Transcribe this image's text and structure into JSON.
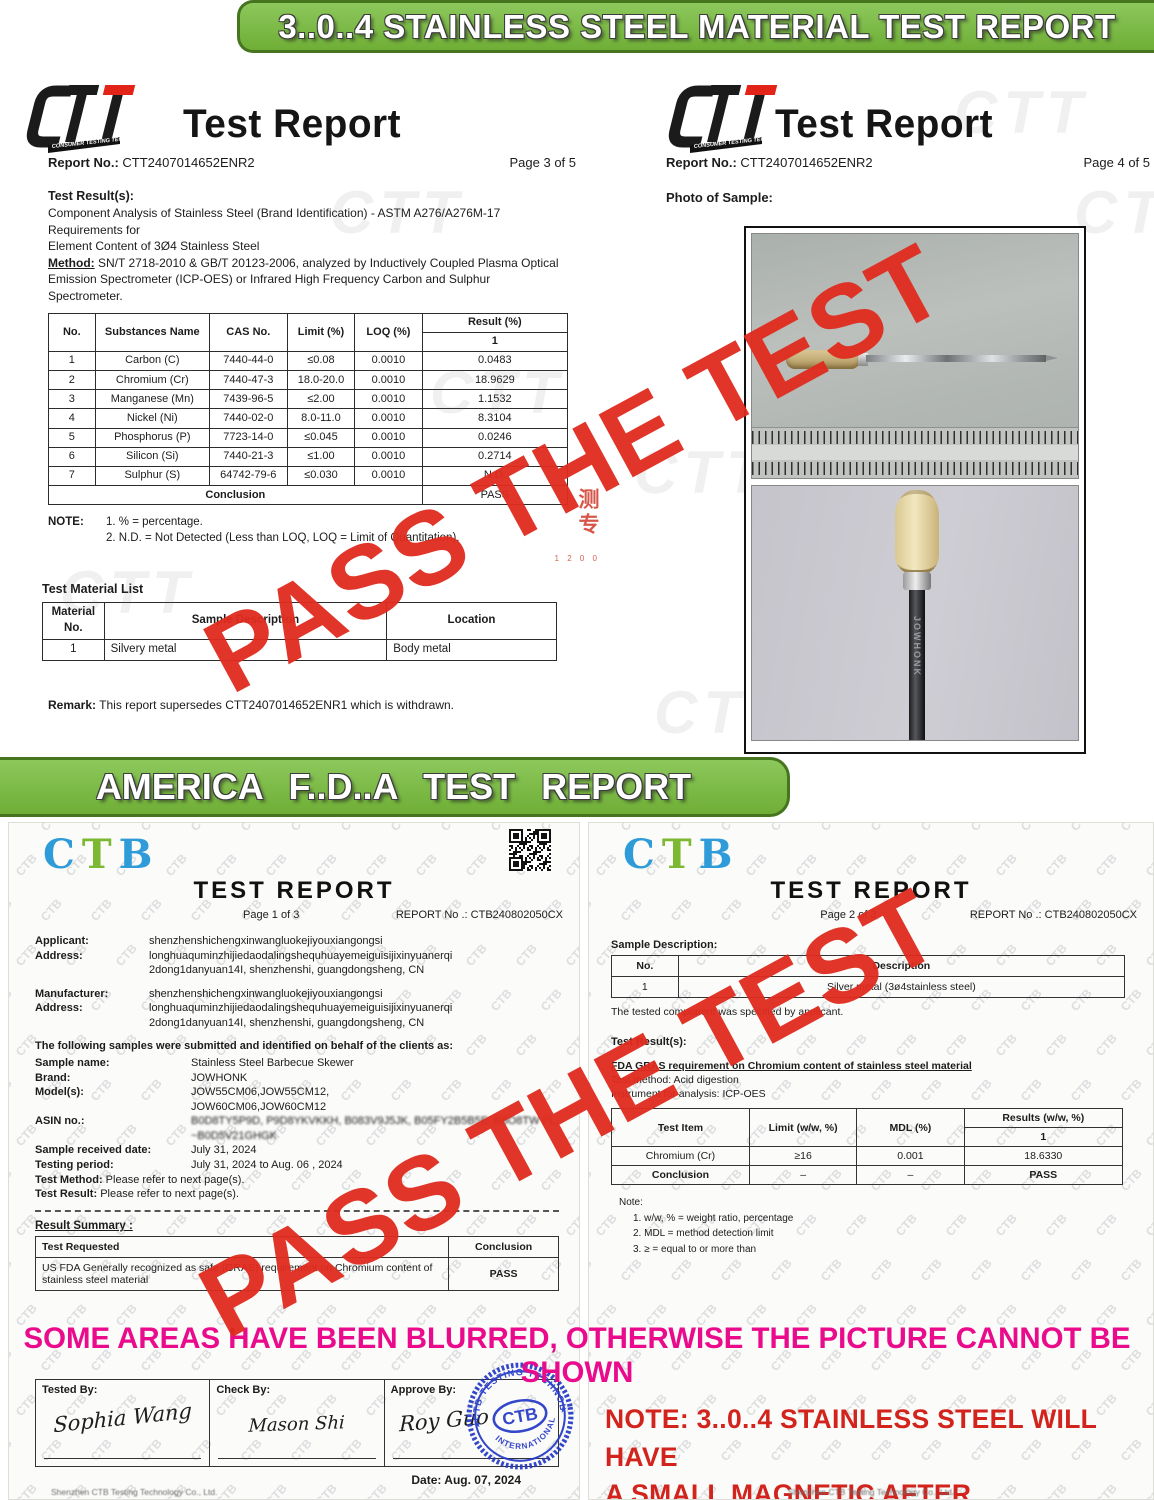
{
  "banners": {
    "top": "3..0..4 STAINLESS STEEL MATERIAL TEST REPORT",
    "middle": "AMERICA F..D..A TEST REPORT",
    "watermark_text": "PASS THE TEST",
    "watermark_color": "#e02b1e",
    "accent_green": "#6fae36",
    "blur_notice": "SOME AREAS HAVE BEEN BLURRED, OTHERWISE THE PICTURE CANNOT BE SHOWN",
    "blur_notice_color": "#ea0a8c"
  },
  "watermarks": {
    "ctt": "CTT",
    "ctb": "CTB"
  },
  "ctt_page3": {
    "logo_sub": "CONSUMER TESTING TECH",
    "title": "Test Report",
    "report_no_label": "Report No.:",
    "report_no": "CTT2407014652ENR2",
    "page": "Page 3 of 5",
    "section_label": "Test Result(s):",
    "desc_line1": "Component Analysis of Stainless Steel (Brand Identification) - ASTM A276/A276M-17 Requirements for",
    "desc_line2": "Element Content of 3Ø4 Stainless Steel",
    "method_label": "Method:",
    "method_text": " SN/T 2718-2010 & GB/T 20123-2006, analyzed by Inductively Coupled Plasma Optical Emission Spectrometer (ICP-OES)  or Infrared High Frequency Carbon and Sulphur Spectrometer.",
    "table": {
      "h_no": "No.",
      "h_name": "Substances Name",
      "h_cas": "CAS No.",
      "h_limit": "Limit (%)",
      "h_loq": "LOQ (%)",
      "h_result": "Result (%)",
      "result_sub": "1",
      "rows": [
        [
          "1",
          "Carbon (C)",
          "7440-44-0",
          "≤0.08",
          "0.0010",
          "0.0483"
        ],
        [
          "2",
          "Chromium (Cr)",
          "7440-47-3",
          "18.0-20.0",
          "0.0010",
          "18.9629"
        ],
        [
          "3",
          "Manganese (Mn)",
          "7439-96-5",
          "≤2.00",
          "0.0010",
          "1.1532"
        ],
        [
          "4",
          "Nickel (Ni)",
          "7440-02-0",
          "8.0-11.0",
          "0.0010",
          "8.3104"
        ],
        [
          "5",
          "Phosphorus (P)",
          "7723-14-0",
          "≤0.045",
          "0.0010",
          "0.0246"
        ],
        [
          "6",
          "Silicon (Si)",
          "7440-21-3",
          "≤1.00",
          "0.0010",
          "0.2714"
        ],
        [
          "7",
          "Sulphur (S)",
          "64742-79-6",
          "≤0.030",
          "0.0010",
          "N.D."
        ]
      ],
      "conclusion_label": "Conclusion",
      "conclusion_value": "PASS"
    },
    "note_label": "NOTE:",
    "notes": [
      "1. % = percentage.",
      "2. N.D. = Not Detected (Less than LOQ, LOQ = Limit of Quantitation)."
    ],
    "material_label": "Test Material List",
    "material_headers": [
      "Material No.",
      "Sample Description",
      "Location"
    ],
    "material_row": [
      "1",
      "Silvery metal",
      "Body metal"
    ],
    "remark_label": "Remark:",
    "remark_text": " This report supersedes CTT2407014652ENR1 which is withdrawn.",
    "seal_text": "测专",
    "seal_sub": "1 2 0 0"
  },
  "ctt_page4": {
    "logo_sub": "CONSUMER TESTING TECH",
    "title": "Test Report",
    "report_no_label": "Report No.:",
    "report_no": "CTT2407014652ENR2",
    "page": "Page 4 of 5",
    "photo_label": "Photo of Sample:",
    "blade_text": "JOWHONK"
  },
  "ctb_page1": {
    "logo": [
      "C",
      "T",
      "B"
    ],
    "title": "TEST REPORT",
    "page": "Page 1 of 3",
    "report_label": "REPORT No .:",
    "report_no": "CTB240802050CX",
    "applicant_label": "Applicant:",
    "applicant": "shenzhenshichengxinwangluokejiyouxiangongsi",
    "address_label": "Address:",
    "address_l1": "longhuaquminzhijiedaodalingshequhuayemeiguisijixinyuanerqi",
    "address_l2": "2dong1danyuan14I, shenzhenshi, guangdongsheng, CN",
    "manufacturer_label": "Manufacturer:",
    "manufacturer": "shenzhenshichengxinwangluokejiyouxiangongsi",
    "samples_intro": "The following samples were submitted and identified on behalf of the clients as:",
    "sample_name_label": "Sample name:",
    "sample_name": "Stainless Steel Barbecue Skewer",
    "brand_label": "Brand:",
    "brand": "JOWHONK",
    "models_label": "Model(s):",
    "models_l1": "JOW55CM06,JOW55CM12,",
    "models_l2": "JOW60CM06,JOW60CM12",
    "asin_label": "ASIN no.:",
    "asin_l1": "B0D8TY5P9D, P9D8YKVKKH, B083V9J5JK, B05FY2B5B5E, B8O8TW FL,",
    "asin_l2": "~B0D5V21GHGK",
    "received_label": "Sample received date:",
    "received": "July 31, 2024",
    "period_label": "Testing period:",
    "period": "July 31, 2024 to Aug. 06 , 2024",
    "method_label": "Test Method:",
    "method": " Please refer to next page(s).",
    "result_label": "Test Result:",
    "result": " Please refer to next page(s).",
    "summary_label": "Result Summary :",
    "summary_h_test": "Test Requested",
    "summary_h_conclusion": "Conclusion",
    "summary_test": "US FDA Generally recognized as safe (GRAS) requirement on Chromium content of stainless steel material",
    "summary_conclusion": "PASS",
    "tested_by_label": "Tested By:",
    "tested_by": "Sophia Wang",
    "check_by_label": "Check By:",
    "check_by": "Mason Shi",
    "approve_by_label": "Approve By:",
    "approve_by": "Roy Guo",
    "stamp": {
      "top": "CTB TESTING TECHNOLOGY",
      "bottom": "INTERNATIONAL",
      "center": "CTB"
    },
    "date_line": "Date: Aug. 07, 2024",
    "footer": "Shenzhen CTB Testing Technology Co., Ltd."
  },
  "ctb_page2": {
    "logo": [
      "C",
      "T",
      "B"
    ],
    "title": "TEST REPORT",
    "page": "Page 2 of 3",
    "report_label": "REPORT No .:",
    "report_no": "CTB240802050CX",
    "sample_desc_label": "Sample Description:",
    "desc_h_no": "No.",
    "desc_h_desc": "Description",
    "desc_no": "1",
    "desc_value": "Silver metal (3ø4stainless steel)",
    "tested_note": "The tested component was specified by applicant.",
    "results_label": "Test Result(s):",
    "fda_heading": "FDA GRAS requirement on Chromium content of stainless steel material",
    "method_line": "Test method: Acid digestion",
    "instrument_line": "Instrument for analysis: ICP-OES",
    "fda_h_item": "Test Item",
    "fda_h_limit": "Limit (w/w, %)",
    "fda_h_mdl": "MDL (%)",
    "fda_h_results": "Results (w/w, %)",
    "fda_sub": "1",
    "fda_row": [
      "Chromium (Cr)",
      "≥16",
      "0.001",
      "18.6330"
    ],
    "fda_conclusion": [
      "Conclusion",
      "–",
      "–",
      "PASS"
    ],
    "note_label": "Note:",
    "notes": [
      "1.   w/w, % = weight ratio, percentage",
      "2.   MDL = method detection limit",
      "3.   ≥ = equal to or more than"
    ],
    "red_note_l1": "NOTE: 3..0..4 STAINLESS STEEL WILL HAVE",
    "red_note_l2": "A SMALL MAGNETIC AFTER PROCESSING !",
    "footer": "Shenzhen CTB Testing Technology Co., Ltd."
  }
}
